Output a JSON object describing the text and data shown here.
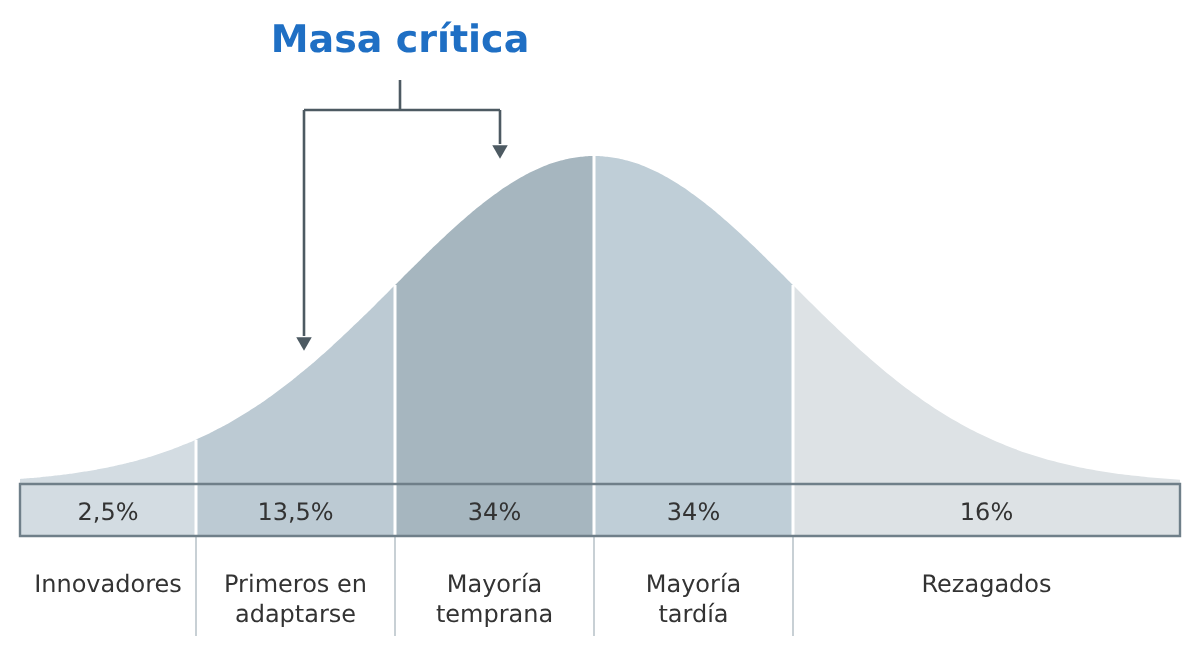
{
  "chart_data": {
    "type": "other",
    "title": "Masa crítica",
    "categories": [
      "Innovadores",
      "Primeros en adaptarse",
      "Mayoría temprana",
      "Mayoría tardía",
      "Rezagados"
    ],
    "values": [
      2.5,
      13.5,
      34,
      34,
      16
    ],
    "value_labels": [
      "2,5%",
      "13,5%",
      "34%",
      "34%",
      "16%"
    ],
    "colors": [
      "#d3dce2",
      "#bccad3",
      "#a6b6bf",
      "#bfced7",
      "#dde2e5"
    ]
  }
}
